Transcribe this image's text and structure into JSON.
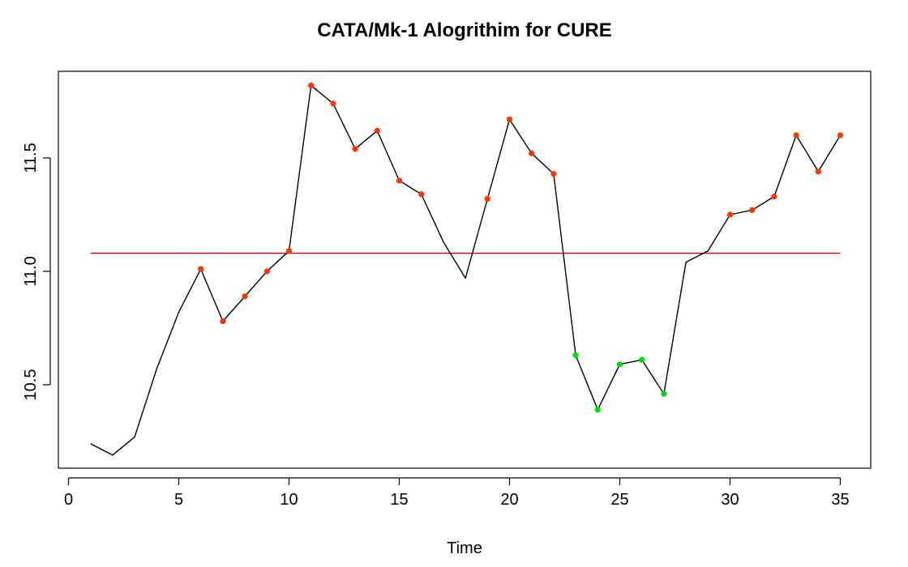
{
  "chart_data": {
    "type": "line",
    "title": "CATA/Mk-1 Alogrithim for CURE",
    "xlabel": "Time",
    "ylabel": "",
    "xlim": [
      1,
      35
    ],
    "ylim": [
      10.17,
      11.84
    ],
    "x_ticks": [
      0,
      5,
      10,
      15,
      20,
      25,
      30,
      35
    ],
    "y_ticks": [
      10.5,
      11.0,
      11.5
    ],
    "grid": false,
    "colors": {
      "line": "#000000",
      "reference": "#cc0000",
      "above": "#ff3300",
      "below": "#00dd00"
    },
    "reference_line": {
      "y": 11.08
    },
    "series": [
      {
        "x": [
          1,
          2,
          3,
          4,
          5,
          6,
          7,
          8,
          9,
          10,
          11,
          12,
          13,
          14,
          15,
          16,
          17,
          18,
          19,
          20,
          21,
          22,
          23,
          24,
          25,
          26,
          27,
          28,
          29,
          30,
          31,
          32,
          33,
          34,
          35
        ],
        "y": [
          10.24,
          10.19,
          10.27,
          10.57,
          10.82,
          11.01,
          10.78,
          10.89,
          11.0,
          11.09,
          11.82,
          11.74,
          11.54,
          11.62,
          11.4,
          11.34,
          11.13,
          10.97,
          11.32,
          11.67,
          11.52,
          11.43,
          10.63,
          10.39,
          10.59,
          10.61,
          10.46,
          11.04,
          11.09,
          11.25,
          11.27,
          11.33,
          11.6,
          11.44,
          11.6
        ]
      }
    ],
    "markers": [
      {
        "x": 6,
        "y": 11.01,
        "group": "above"
      },
      {
        "x": 7,
        "y": 10.78,
        "group": "above"
      },
      {
        "x": 8,
        "y": 10.89,
        "group": "above"
      },
      {
        "x": 9,
        "y": 11.0,
        "group": "above"
      },
      {
        "x": 10,
        "y": 11.09,
        "group": "above"
      },
      {
        "x": 11,
        "y": 11.82,
        "group": "above"
      },
      {
        "x": 12,
        "y": 11.74,
        "group": "above"
      },
      {
        "x": 13,
        "y": 11.54,
        "group": "above"
      },
      {
        "x": 14,
        "y": 11.62,
        "group": "above"
      },
      {
        "x": 15,
        "y": 11.4,
        "group": "above"
      },
      {
        "x": 16,
        "y": 11.34,
        "group": "above"
      },
      {
        "x": 19,
        "y": 11.32,
        "group": "above"
      },
      {
        "x": 20,
        "y": 11.67,
        "group": "above"
      },
      {
        "x": 21,
        "y": 11.52,
        "group": "above"
      },
      {
        "x": 22,
        "y": 11.43,
        "group": "above"
      },
      {
        "x": 23,
        "y": 10.63,
        "group": "below"
      },
      {
        "x": 24,
        "y": 10.39,
        "group": "below"
      },
      {
        "x": 25,
        "y": 10.59,
        "group": "below"
      },
      {
        "x": 26,
        "y": 10.61,
        "group": "below"
      },
      {
        "x": 27,
        "y": 10.46,
        "group": "below"
      },
      {
        "x": 30,
        "y": 11.25,
        "group": "above"
      },
      {
        "x": 31,
        "y": 11.27,
        "group": "above"
      },
      {
        "x": 32,
        "y": 11.33,
        "group": "above"
      },
      {
        "x": 33,
        "y": 11.6,
        "group": "above"
      },
      {
        "x": 34,
        "y": 11.44,
        "group": "above"
      },
      {
        "x": 35,
        "y": 11.6,
        "group": "above"
      }
    ]
  }
}
